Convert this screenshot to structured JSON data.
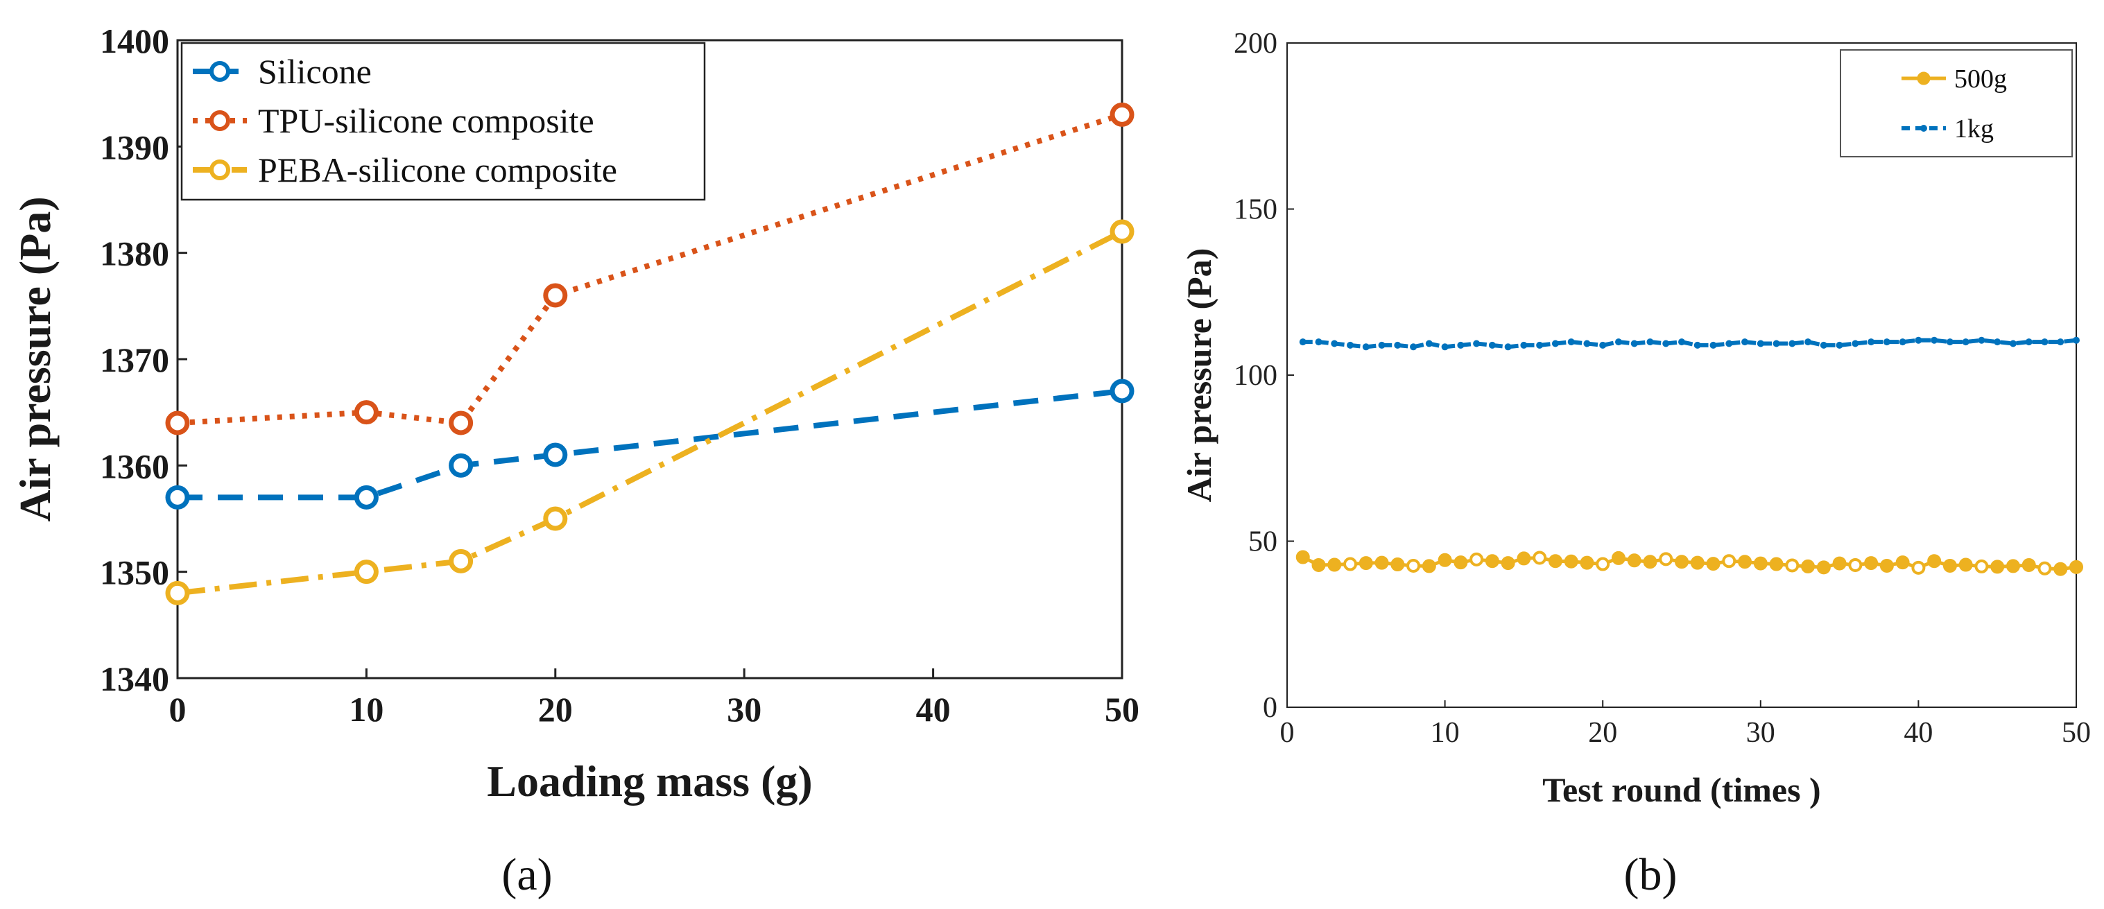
{
  "chart_data": [
    {
      "type": "line",
      "panel_label": "(a)",
      "xlabel": "Loading mass (g)",
      "ylabel": "Air pressure (Pa)",
      "x": [
        0,
        10,
        15,
        20,
        50
      ],
      "xticks": [
        0,
        10,
        20,
        30,
        40,
        50
      ],
      "yticks": [
        1340,
        1350,
        1360,
        1370,
        1380,
        1390,
        1400
      ],
      "xlim": [
        0,
        50
      ],
      "ylim": [
        1340,
        1400
      ],
      "legend_position": "top-left",
      "series": [
        {
          "name": "Silicone",
          "color": "#0072BD",
          "dash": "dashed",
          "values": [
            1357,
            1357,
            1360,
            1361,
            1367
          ]
        },
        {
          "name": "TPU-silicone composite",
          "color": "#D95319",
          "dash": "dotted",
          "values": [
            1364,
            1365,
            1364,
            1376,
            1393
          ]
        },
        {
          "name": "PEBA-silicone composite",
          "color": "#EDB120",
          "dash": "dashdot",
          "values": [
            1348,
            1350,
            1351,
            1355,
            1382
          ]
        }
      ]
    },
    {
      "type": "line",
      "panel_label": "(b)",
      "xlabel": "Test round (times )",
      "ylabel": "Air pressure (Pa)",
      "xticks": [
        0,
        10,
        20,
        30,
        40,
        50
      ],
      "yticks": [
        0,
        50,
        100,
        150,
        200
      ],
      "xlim": [
        0,
        50
      ],
      "ylim": [
        0,
        200
      ],
      "legend_position": "top-right",
      "series": [
        {
          "name": "500g",
          "color": "#EDB120",
          "marker": "circle",
          "values": [
            45.2,
            42.8,
            42.9,
            43.1,
            43.4,
            43.5,
            43.0,
            42.6,
            42.5,
            44.3,
            43.6,
            44.5,
            44.0,
            43.4,
            44.8,
            45.0,
            44.0,
            43.9,
            43.5,
            43.1,
            44.9,
            44.2,
            43.8,
            44.6,
            43.8,
            43.5,
            43.2,
            44.0,
            43.8,
            43.3,
            43.1,
            42.7,
            42.4,
            42.1,
            43.3,
            42.8,
            43.4,
            42.6,
            43.6,
            42.0,
            44.0,
            42.6,
            42.9,
            42.4,
            42.3,
            42.5,
            42.8,
            41.8,
            41.6,
            42.2
          ]
        },
        {
          "name": "1kg",
          "color": "#0072BD",
          "marker": "point",
          "values": [
            110,
            110,
            109.5,
            109,
            108.5,
            109,
            109,
            108.5,
            109.5,
            108.5,
            109,
            109.5,
            109,
            108.5,
            109,
            109,
            109.5,
            110,
            109.5,
            109,
            110,
            109.5,
            110,
            109.5,
            110,
            109,
            109,
            109.5,
            110,
            109.5,
            109.5,
            109.5,
            110,
            109,
            109,
            109.5,
            110,
            110,
            110,
            110.5,
            110.5,
            110,
            110,
            110.5,
            110,
            109.5,
            110,
            110,
            110,
            110.5
          ]
        }
      ]
    }
  ]
}
